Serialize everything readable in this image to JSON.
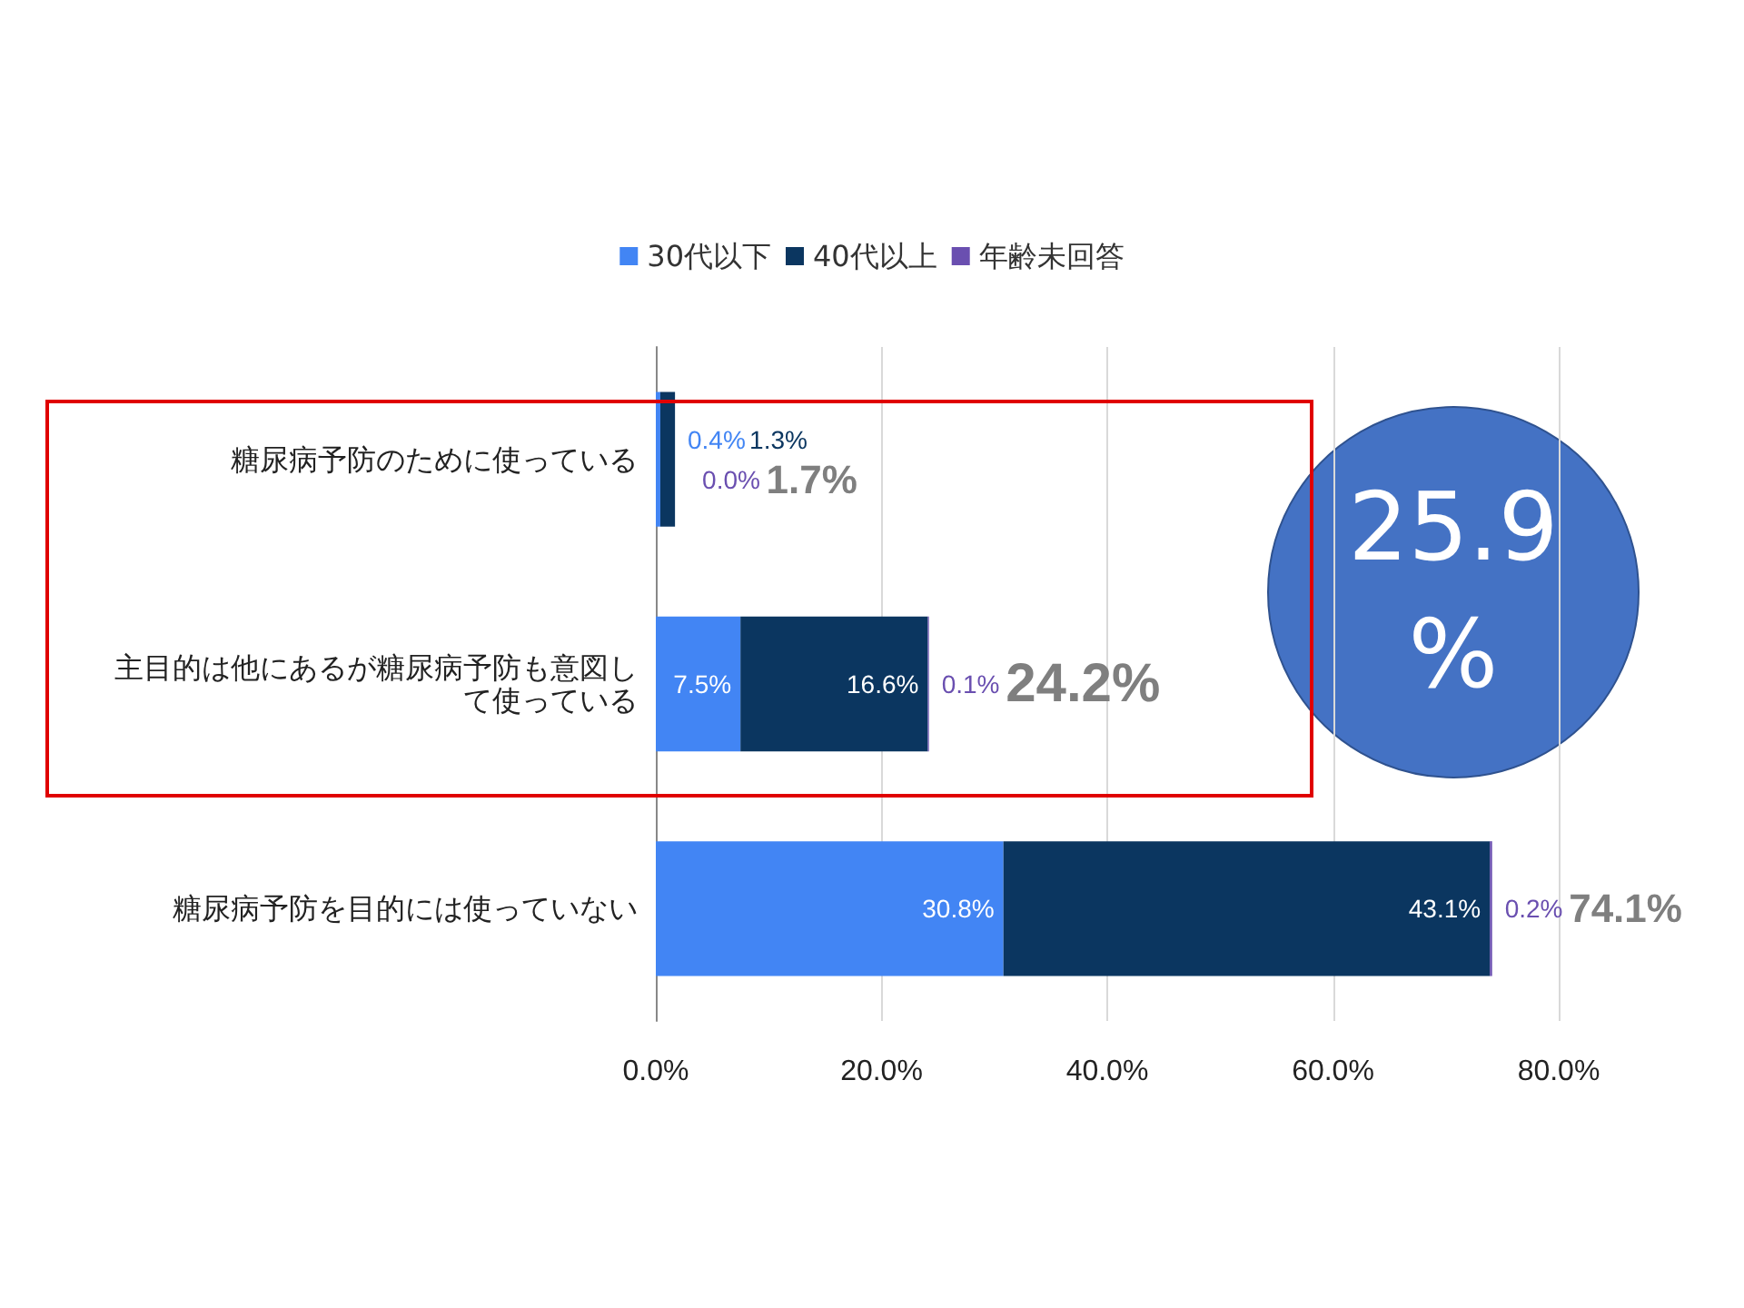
{
  "chart_data": {
    "type": "bar",
    "orientation": "horizontal",
    "stacked": true,
    "categories": [
      "糖尿病予防のために使っている",
      "主目的は他にあるが糖尿病予防も意図して使っている",
      "糖尿病予防を目的には使っていない"
    ],
    "series": [
      {
        "name": "30代以下",
        "color": "#4285f4",
        "values": [
          0.4,
          7.5,
          30.8
        ],
        "value_labels": [
          "0.4%",
          "7.5%",
          "30.8%"
        ]
      },
      {
        "name": "40代以上",
        "color": "#0b3660",
        "values": [
          1.3,
          16.6,
          43.1
        ],
        "value_labels": [
          "1.3%",
          "16.6%",
          "43.1%"
        ]
      },
      {
        "name": "年齢未回答",
        "color": "#6a4fb0",
        "values": [
          0.0,
          0.1,
          0.2
        ],
        "value_labels": [
          "0.0%",
          "0.1%",
          "0.2%"
        ]
      }
    ],
    "totals": [
      "1.7%",
      "24.2%",
      "74.1%"
    ],
    "xlim": [
      0,
      80
    ],
    "xticks": [
      {
        "value": 0,
        "label": "0.0%"
      },
      {
        "value": 20,
        "label": "20.0%"
      },
      {
        "value": 40,
        "label": "40.0%"
      },
      {
        "value": 60,
        "label": "60.0%"
      },
      {
        "value": 80,
        "label": "80.0%"
      }
    ],
    "grid": "x",
    "legend": "top",
    "annotations": [
      "25.9\n%"
    ]
  }
}
